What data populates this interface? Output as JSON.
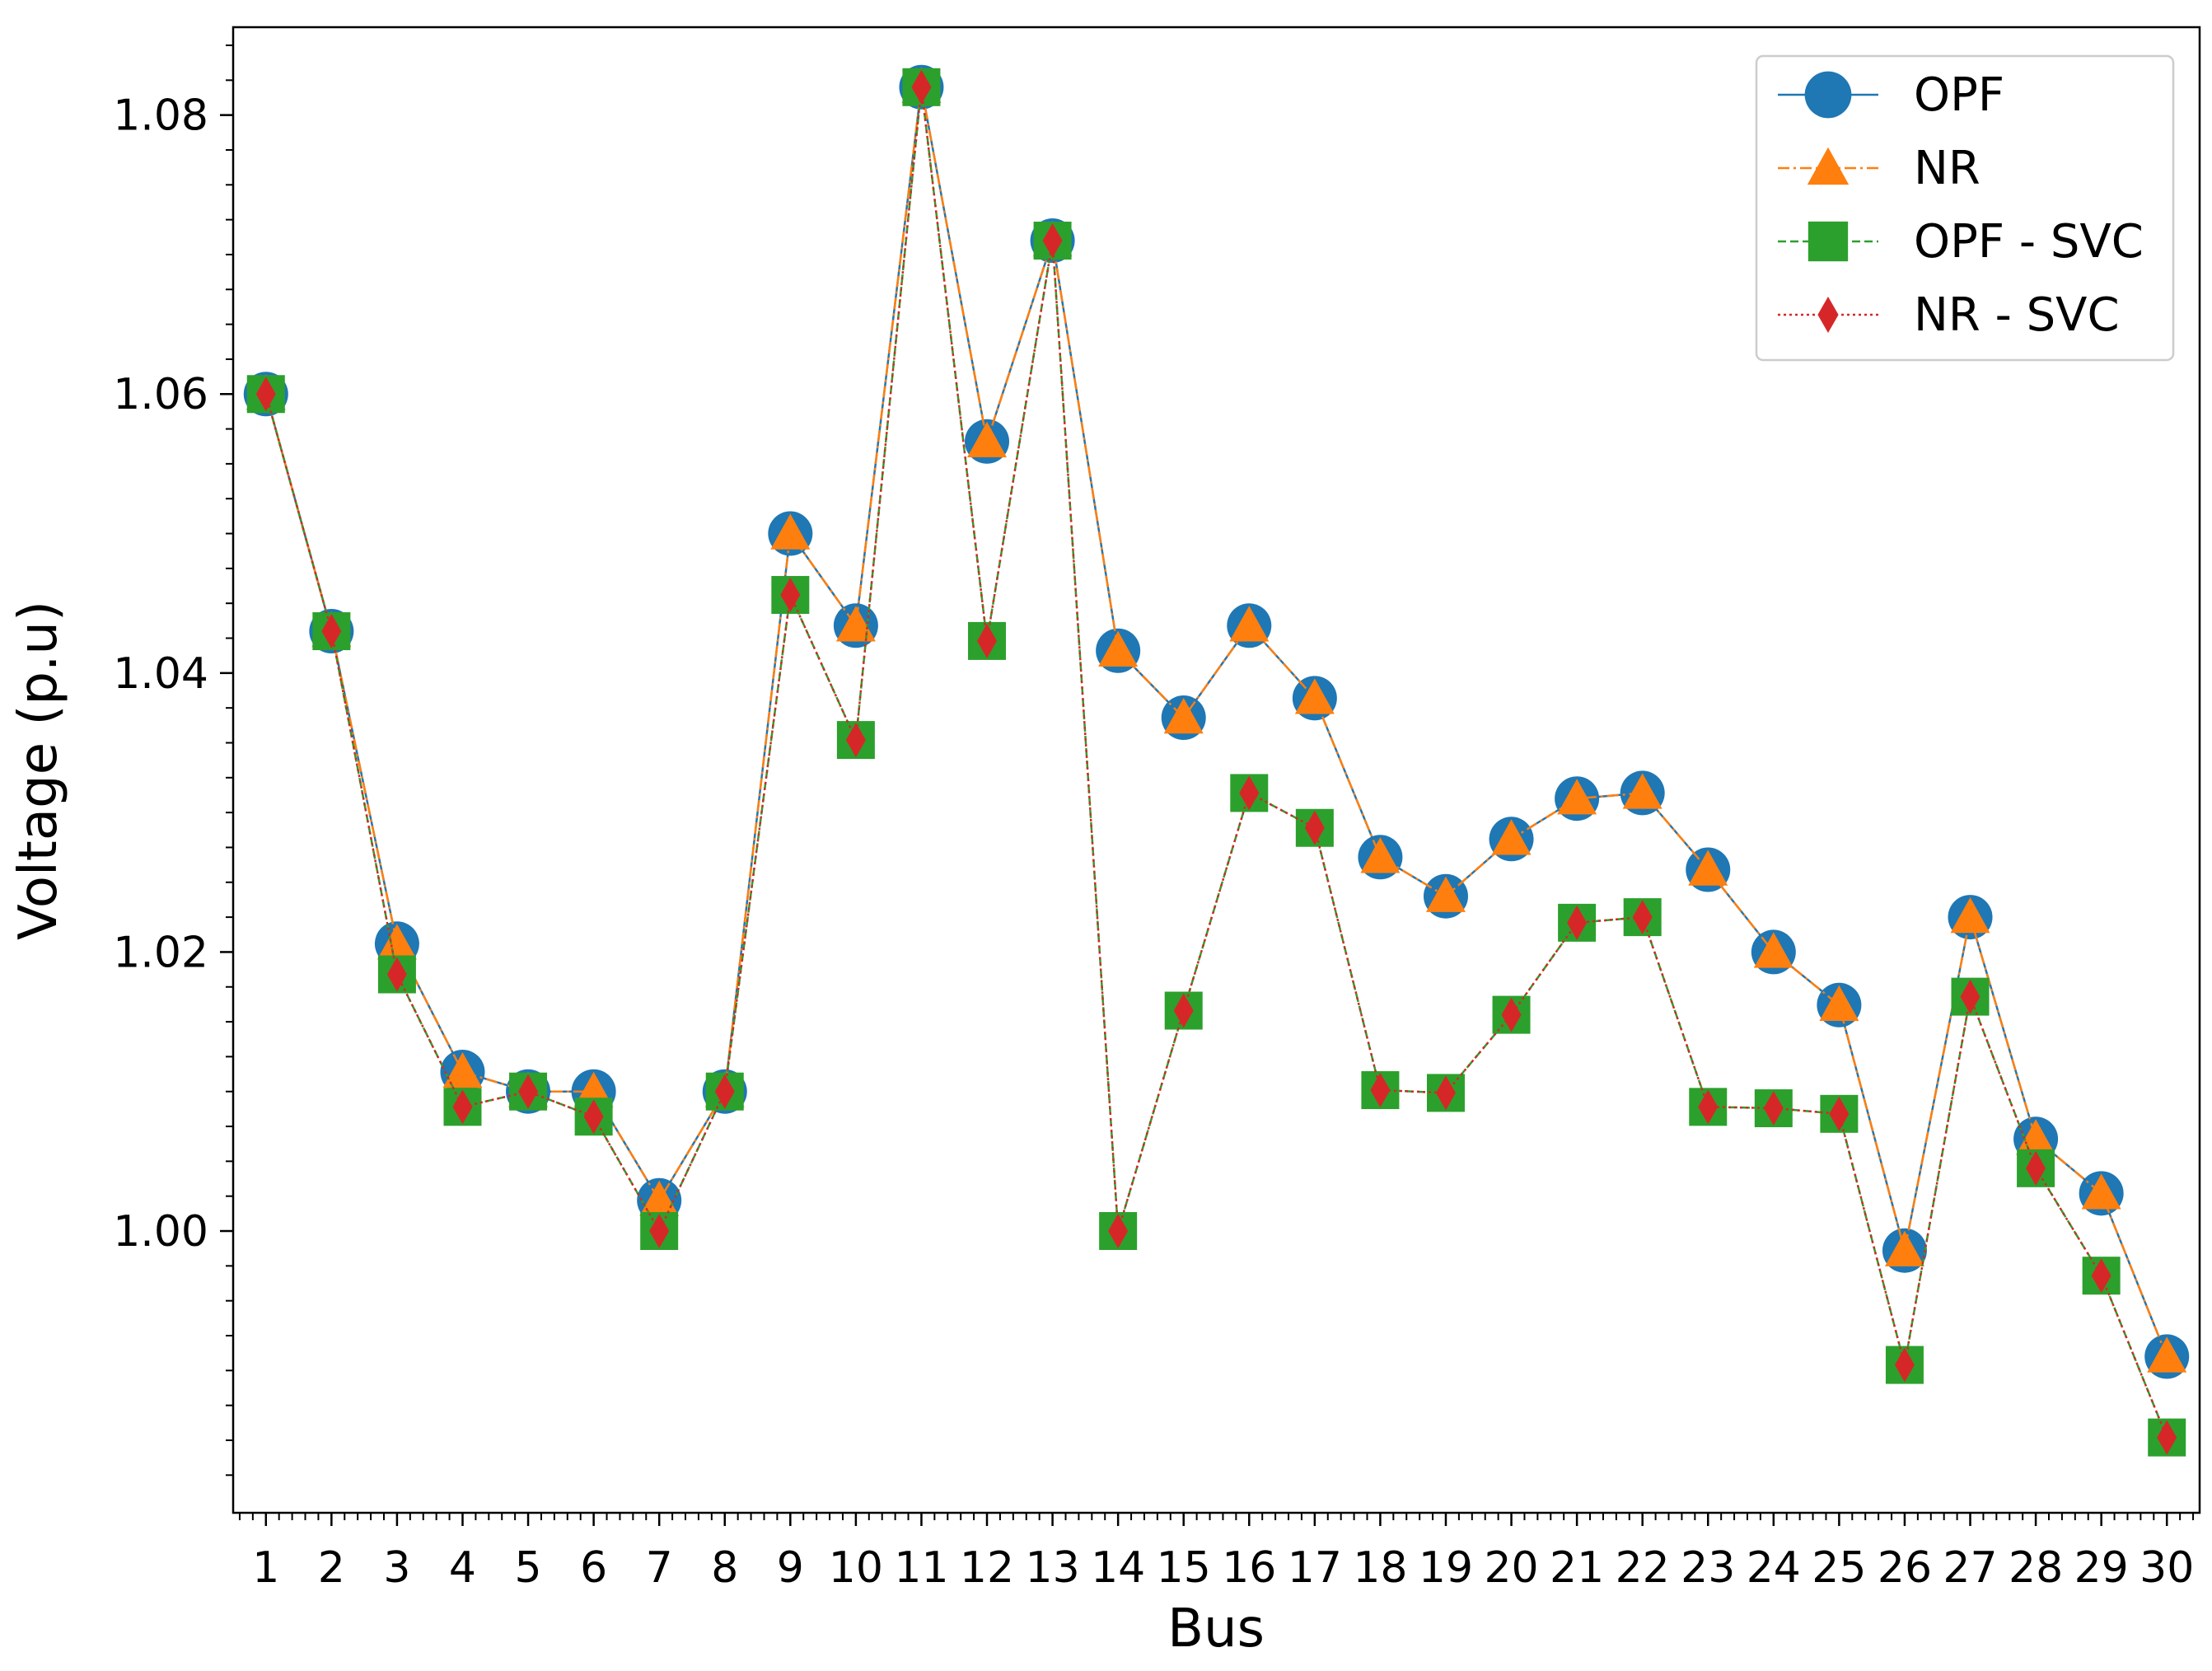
{
  "chart_data": {
    "type": "line",
    "title": "",
    "xlabel": "Bus",
    "ylabel": "Voltage (p.u)",
    "x": [
      1,
      2,
      3,
      4,
      5,
      6,
      7,
      8,
      9,
      10,
      11,
      12,
      13,
      14,
      15,
      16,
      17,
      18,
      19,
      20,
      21,
      22,
      23,
      24,
      25,
      26,
      27,
      28,
      29,
      30
    ],
    "x_tick_labels": [
      "1",
      "2",
      "3",
      "4",
      "5",
      "6",
      "7",
      "8",
      "9",
      "10",
      "11",
      "12",
      "13",
      "14",
      "15",
      "16",
      "17",
      "18",
      "19",
      "20",
      "21",
      "22",
      "23",
      "24",
      "25",
      "26",
      "27",
      "28",
      "29",
      "30"
    ],
    "y_tick_values": [
      1.0,
      1.02,
      1.04,
      1.06,
      1.08
    ],
    "y_tick_labels": [
      "1.00",
      "1.02",
      "1.04",
      "1.06",
      "1.08"
    ],
    "xlim": [
      0.5,
      30.5
    ],
    "ylim": [
      0.9798,
      1.0863
    ],
    "grid": false,
    "legend_position": "top-right",
    "series": [
      {
        "name": "OPF",
        "color": "#1f77b4",
        "marker": "circle",
        "line_style": "solid",
        "values": [
          1.06,
          1.043,
          1.0206,
          1.0114,
          1.01,
          1.01,
          1.0022,
          1.01,
          1.05,
          1.0434,
          1.082,
          1.0566,
          1.071,
          1.0416,
          1.0368,
          1.0434,
          1.0382,
          1.0268,
          1.024,
          1.0281,
          1.031,
          1.0314,
          1.0259,
          1.02,
          1.0162,
          0.9986,
          1.0225,
          1.0066,
          1.0027,
          0.991
        ]
      },
      {
        "name": "NR",
        "color": "#ff7f0e",
        "marker": "triangle",
        "line_style": "dashdot",
        "values": [
          1.06,
          1.043,
          1.0206,
          1.0114,
          1.01,
          1.01,
          1.0022,
          1.01,
          1.05,
          1.0434,
          1.082,
          1.0566,
          1.071,
          1.0416,
          1.0368,
          1.0434,
          1.0382,
          1.0268,
          1.024,
          1.0281,
          1.031,
          1.0314,
          1.0259,
          1.02,
          1.0162,
          0.9986,
          1.0225,
          1.0066,
          1.0027,
          0.991
        ]
      },
      {
        "name": "OPF - SVC",
        "color": "#2ca02c",
        "marker": "square",
        "line_style": "dashed",
        "values": [
          1.06,
          1.043,
          1.0184,
          1.0089,
          1.01,
          1.0082,
          1.0,
          1.01,
          1.0456,
          1.0352,
          1.082,
          1.0423,
          1.071,
          1.0,
          1.0158,
          1.0314,
          1.0289,
          1.0101,
          1.0099,
          1.0155,
          1.0221,
          1.0225,
          1.0089,
          1.0088,
          1.0084,
          0.9904,
          1.0168,
          1.0045,
          0.9968,
          0.9852
        ]
      },
      {
        "name": "NR - SVC",
        "color": "#d62728",
        "marker": "thin-diamond",
        "line_style": "dotted",
        "values": [
          1.06,
          1.043,
          1.0184,
          1.0089,
          1.01,
          1.0082,
          1.0,
          1.01,
          1.0456,
          1.0352,
          1.082,
          1.0423,
          1.071,
          1.0,
          1.0158,
          1.0314,
          1.0289,
          1.0101,
          1.0099,
          1.0155,
          1.0221,
          1.0225,
          1.0089,
          1.0088,
          1.0084,
          0.9904,
          1.0168,
          1.0045,
          0.9968,
          0.9852
        ]
      }
    ]
  }
}
